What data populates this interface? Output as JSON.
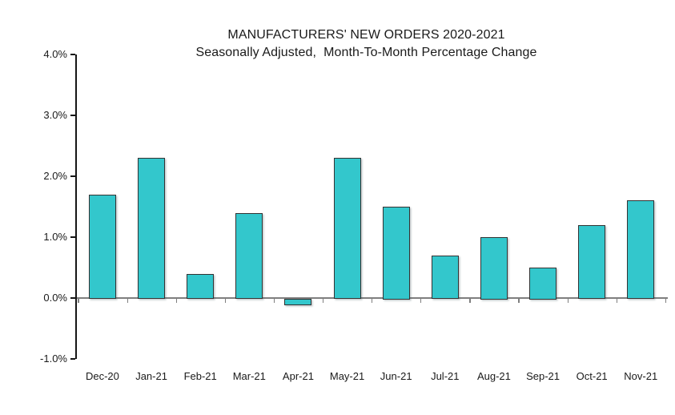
{
  "chart_data": {
    "type": "bar",
    "title": "MANUFACTURERS' NEW ORDERS 2020-2021",
    "subtitle": "Seasonally Adjusted,  Month-To-Month Percentage Change",
    "categories": [
      "Dec-20",
      "Jan-21",
      "Feb-21",
      "Mar-21",
      "Apr-21",
      "May-21",
      "Jun-21",
      "Jul-21",
      "Aug-21",
      "Sep-21",
      "Oct-21",
      "Nov-21"
    ],
    "values": [
      1.7,
      2.3,
      0.4,
      1.4,
      -0.1,
      2.3,
      1.5,
      0.7,
      1.0,
      0.5,
      1.2,
      1.6
    ],
    "unit": "%",
    "xlabel": "",
    "ylabel": "",
    "ylim": [
      -1.0,
      4.0
    ],
    "yticks": [
      {
        "value": 4.0,
        "label": "4.0%"
      },
      {
        "value": 3.0,
        "label": "3.0%"
      },
      {
        "value": 2.0,
        "label": "2.0%"
      },
      {
        "value": 1.0,
        "label": "1.0%"
      },
      {
        "value": 0.0,
        "label": "0.0%"
      },
      {
        "value": -1.0,
        "label": "-1.0%"
      }
    ],
    "grid": false,
    "legend": "none",
    "colors": {
      "bar_fill": "#33C7CC",
      "bar_border": "#333333",
      "axis_line": "#151515",
      "zero_line": "#7F7F7F",
      "tick": "#7F7F7F",
      "text": "#1A1A1A",
      "background": "#FFFFFF"
    }
  }
}
